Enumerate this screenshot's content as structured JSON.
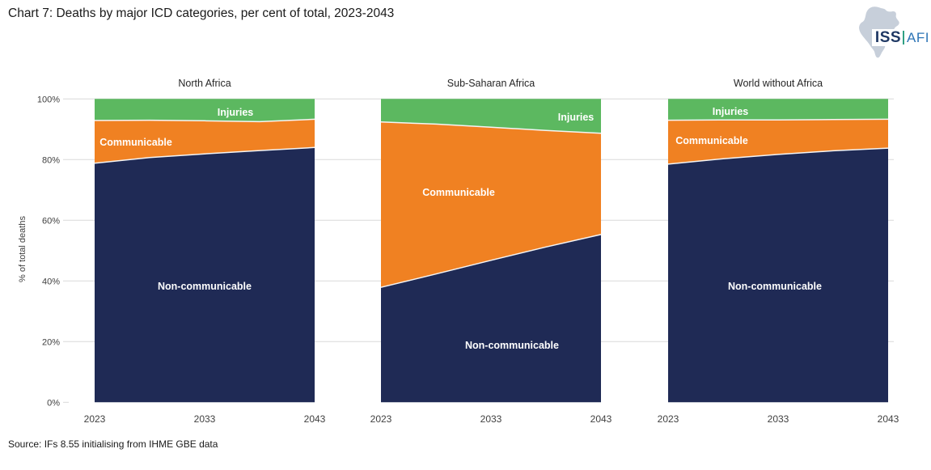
{
  "header": {
    "title": "Chart 7: Deaths by major ICD categories, per cent of total, 2023-2043",
    "logo": {
      "iss": "ISS",
      "afi": "AFI",
      "iss_color": "#1F3864",
      "afi_color": "#2E75B6",
      "separator_color": "#2FA083",
      "africa_color": "#C7CFDA"
    }
  },
  "footer": {
    "source": "Source: IFs 8.55 initialising from IHME GBE data"
  },
  "chart_data": {
    "type": "area",
    "stacked": "percent",
    "title": "Chart 7: Deaths by major ICD categories, per cent of total, 2023-2043",
    "ylabel": "% of total deaths",
    "ylim": [
      0,
      100
    ],
    "grid": true,
    "grid_color": "#D9D9D9",
    "boundary_stroke": "#F5F5F5",
    "yticks": [
      {
        "value": 0,
        "label": "0%"
      },
      {
        "value": 20,
        "label": "20%"
      },
      {
        "value": 40,
        "label": "40%"
      },
      {
        "value": 60,
        "label": "60%"
      },
      {
        "value": 80,
        "label": "80%"
      },
      {
        "value": 100,
        "label": "100%"
      }
    ],
    "x": [
      2023,
      2028,
      2033,
      2038,
      2043
    ],
    "xticks": [
      "2023",
      "2033",
      "2043"
    ],
    "panels": [
      {
        "title": "North Africa",
        "series": [
          {
            "name": "Non-communicable",
            "color": "#1F2A55",
            "values": [
              78.8,
              80.7,
              81.9,
              83.0,
              84.0
            ]
          },
          {
            "name": "Communicable",
            "color": "#F08122",
            "values": [
              14.1,
              12.3,
              10.9,
              9.5,
              9.3
            ]
          },
          {
            "name": "Injuries",
            "color": "#5CB860",
            "values": [
              7.1,
              7.0,
              7.2,
              7.5,
              6.7
            ]
          }
        ]
      },
      {
        "title": "Sub-Saharan Africa",
        "series": [
          {
            "name": "Non-communicable",
            "color": "#1F2A55",
            "values": [
              37.9,
              42.3,
              46.8,
              51.2,
              55.3
            ]
          },
          {
            "name": "Communicable",
            "color": "#F08122",
            "values": [
              54.5,
              49.4,
              43.9,
              38.4,
              33.4
            ]
          },
          {
            "name": "Injuries",
            "color": "#5CB860",
            "values": [
              7.6,
              8.3,
              9.3,
              10.4,
              11.3
            ]
          }
        ]
      },
      {
        "title": "World without Africa",
        "series": [
          {
            "name": "Non-communicable",
            "color": "#1F2A55",
            "values": [
              78.5,
              80.3,
              81.7,
              82.9,
              83.8
            ]
          },
          {
            "name": "Communicable",
            "color": "#F08122",
            "values": [
              14.5,
              12.8,
              11.4,
              10.3,
              9.5
            ]
          },
          {
            "name": "Injuries",
            "color": "#5CB860",
            "values": [
              7.0,
              6.9,
              6.9,
              6.8,
              6.7
            ]
          }
        ]
      }
    ]
  }
}
